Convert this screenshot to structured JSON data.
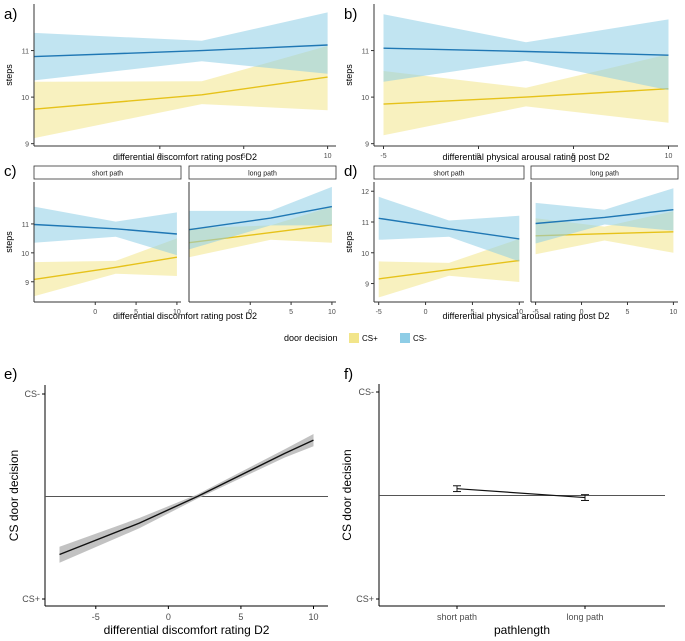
{
  "figure": {
    "legend": {
      "title": "door decision",
      "items": [
        {
          "name": "CS+",
          "color": "#f2e58a"
        },
        {
          "name": "CS-",
          "color": "#8ecde6"
        }
      ]
    },
    "colors": {
      "cs_plus_line": "#e6c21a",
      "cs_plus_band": "#f2e58a",
      "cs_minus_line": "#1f77b4",
      "cs_minus_band": "#8ecde6",
      "grey_band": "#bbbbbb"
    }
  },
  "chart_data": [
    {
      "panel": "a)",
      "type": "line",
      "xlabel": "differential discomfort rating post D2",
      "ylabel": "steps",
      "xlim": [
        -7.5,
        10.5
      ],
      "ylim": [
        8.95,
        12.0
      ],
      "xticks": [
        0,
        5,
        10
      ],
      "yticks": [
        9,
        10,
        11
      ],
      "series": [
        {
          "name": "CS+",
          "x": [
            -7.5,
            2.5,
            10
          ],
          "y": [
            9.74,
            10.05,
            10.43
          ],
          "lower": [
            9.12,
            9.85,
            9.72
          ],
          "upper": [
            10.33,
            10.34,
            11.1
          ]
        },
        {
          "name": "CS-",
          "x": [
            -7.5,
            2.5,
            10
          ],
          "y": [
            10.87,
            11.0,
            11.12
          ],
          "lower": [
            10.36,
            10.77,
            10.5
          ],
          "upper": [
            11.38,
            11.21,
            11.82
          ]
        }
      ]
    },
    {
      "panel": "b)",
      "type": "line",
      "xlabel": "differential physical arousal rating post D2",
      "ylabel": "steps",
      "xlim": [
        -5.5,
        10.5
      ],
      "ylim": [
        8.95,
        12.0
      ],
      "xticks": [
        -5,
        0,
        5,
        10
      ],
      "yticks": [
        9,
        10,
        11
      ],
      "series": [
        {
          "name": "CS+",
          "x": [
            -5,
            2.5,
            10
          ],
          "y": [
            9.85,
            10.0,
            10.18
          ],
          "lower": [
            9.18,
            9.8,
            9.45
          ],
          "upper": [
            10.56,
            10.2,
            10.92
          ]
        },
        {
          "name": "CS-",
          "x": [
            -5,
            2.5,
            10
          ],
          "y": [
            11.05,
            10.98,
            10.9
          ],
          "lower": [
            10.33,
            10.78,
            10.15
          ],
          "upper": [
            11.78,
            11.18,
            11.67
          ]
        }
      ]
    },
    {
      "panel": "c)",
      "type": "line",
      "xlabel": "differential discomfort rating post D2",
      "ylabel": "steps",
      "facets": [
        "short path",
        "long path"
      ],
      "xlim": [
        -7.5,
        10.5
      ],
      "ylim": [
        8.3,
        12.45
      ],
      "xticks": [
        0,
        5,
        10
      ],
      "yticks": [
        9,
        10,
        11
      ],
      "series": [
        {
          "facet": "short path",
          "name": "CS+",
          "x": [
            -7.5,
            2.5,
            10
          ],
          "y": [
            9.08,
            9.5,
            9.85
          ],
          "lower": [
            8.5,
            9.28,
            9.2
          ],
          "upper": [
            9.68,
            9.72,
            10.5
          ]
        },
        {
          "facet": "short path",
          "name": "CS-",
          "x": [
            -7.5,
            2.5,
            10
          ],
          "y": [
            10.98,
            10.83,
            10.65
          ],
          "lower": [
            10.35,
            10.56,
            9.92
          ],
          "upper": [
            11.6,
            11.08,
            11.4
          ]
        },
        {
          "facet": "long path",
          "name": "CS+",
          "x": [
            -7.5,
            2.5,
            10
          ],
          "y": [
            10.35,
            10.7,
            10.97
          ],
          "lower": [
            9.85,
            10.45,
            10.35
          ],
          "upper": [
            10.85,
            10.95,
            11.6
          ]
        },
        {
          "facet": "long path",
          "name": "CS-",
          "x": [
            -7.5,
            2.5,
            10
          ],
          "y": [
            10.8,
            11.2,
            11.6
          ],
          "lower": [
            10.12,
            10.95,
            10.95
          ],
          "upper": [
            11.45,
            11.45,
            12.28
          ]
        }
      ]
    },
    {
      "panel": "d)",
      "type": "line",
      "xlabel": "differential physical arousal rating post D2",
      "ylabel": "steps",
      "facets": [
        "short path",
        "long path"
      ],
      "xlim": [
        -5.5,
        10.5
      ],
      "ylim": [
        8.4,
        12.3
      ],
      "xticks": [
        -5,
        0,
        5,
        10
      ],
      "yticks": [
        9,
        10,
        11,
        12
      ],
      "series": [
        {
          "facet": "short path",
          "name": "CS+",
          "x": [
            -5,
            2.5,
            10
          ],
          "y": [
            9.15,
            9.45,
            9.75
          ],
          "lower": [
            8.55,
            9.25,
            9.05
          ],
          "upper": [
            9.72,
            9.67,
            10.45
          ]
        },
        {
          "facet": "short path",
          "name": "CS-",
          "x": [
            -5,
            2.5,
            10
          ],
          "y": [
            11.12,
            10.78,
            10.45
          ],
          "lower": [
            10.42,
            10.52,
            9.72
          ],
          "upper": [
            11.82,
            11.05,
            11.2
          ]
        },
        {
          "facet": "long path",
          "name": "CS+",
          "x": [
            -5,
            2.5,
            10
          ],
          "y": [
            10.55,
            10.62,
            10.68
          ],
          "lower": [
            9.95,
            10.4,
            10.0
          ],
          "upper": [
            11.12,
            10.85,
            11.35
          ]
        },
        {
          "facet": "long path",
          "name": "CS-",
          "x": [
            -5,
            2.5,
            10
          ],
          "y": [
            10.95,
            11.15,
            11.4
          ],
          "lower": [
            10.3,
            10.92,
            10.72
          ],
          "upper": [
            11.62,
            11.4,
            12.1
          ]
        }
      ]
    },
    {
      "panel": "e)",
      "type": "line",
      "xlabel": "differential discomfort rating D2",
      "ylabel": "CS door decision",
      "xlim": [
        -8.5,
        11
      ],
      "ylim": [
        0,
        1
      ],
      "xticks": [
        -5,
        0,
        5,
        10
      ],
      "yticklabels": [
        {
          "y": 0,
          "label": "CS+"
        },
        {
          "y": 1,
          "label": "CS-"
        }
      ],
      "hline": 0.5,
      "series": [
        {
          "name": "prediction",
          "x": [
            -7.5,
            -2,
            2,
            8,
            10
          ],
          "y": [
            0.217,
            0.37,
            0.5,
            0.71,
            0.775
          ],
          "lower": [
            0.177,
            0.345,
            0.49,
            0.69,
            0.745
          ],
          "upper": [
            0.255,
            0.395,
            0.51,
            0.73,
            0.805
          ]
        }
      ]
    },
    {
      "panel": "f)",
      "type": "line",
      "xlabel": "pathlength",
      "ylabel": "CS door decision",
      "categories": [
        "short path",
        "long path"
      ],
      "ylim": [
        0,
        1
      ],
      "yticklabels": [
        {
          "y": 0,
          "label": "CS+"
        },
        {
          "y": 1,
          "label": "CS-"
        }
      ],
      "hline": 0.5,
      "series": [
        {
          "name": "prediction",
          "values": [
            0.533,
            0.49
          ],
          "lower": [
            0.519,
            0.476
          ],
          "upper": [
            0.547,
            0.504
          ]
        }
      ]
    }
  ]
}
